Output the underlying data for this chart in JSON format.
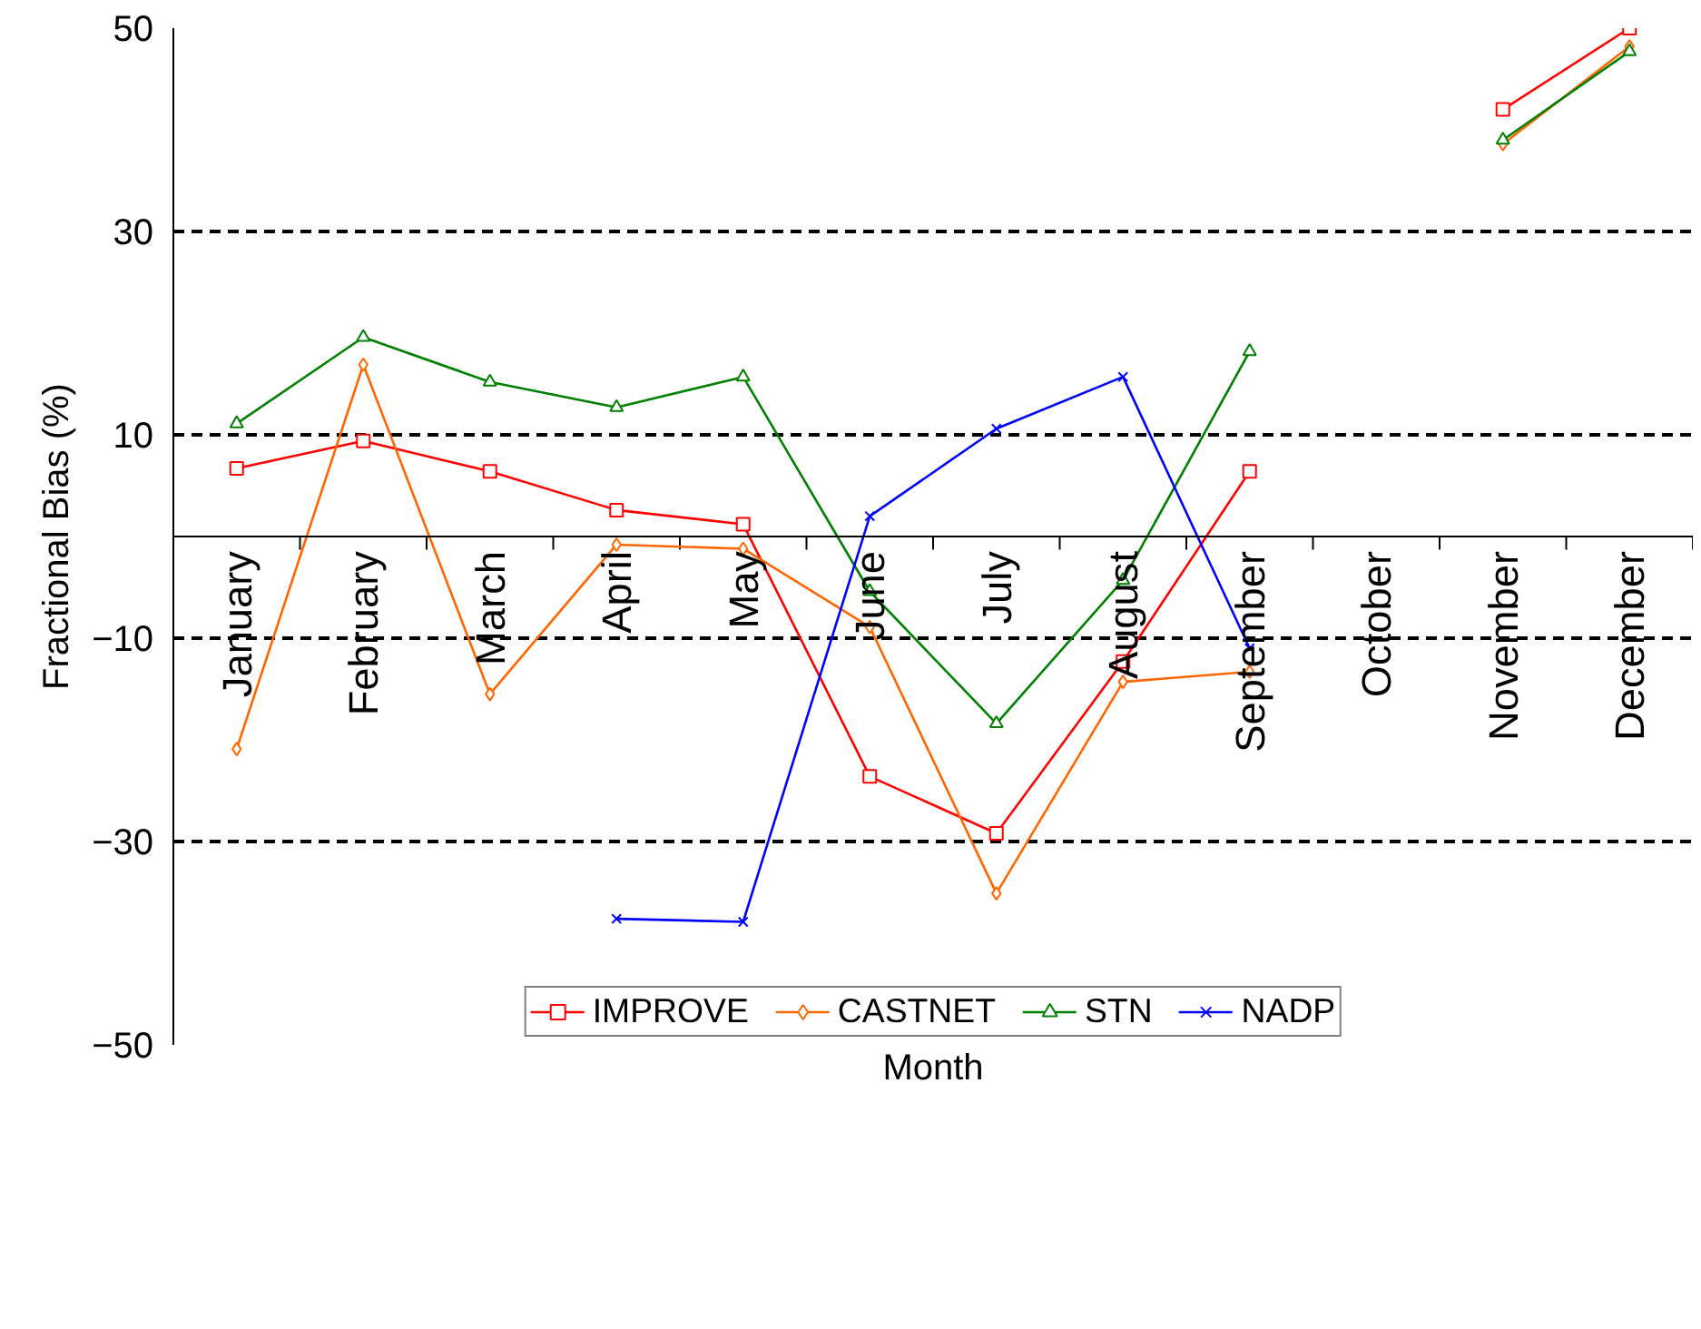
{
  "chart_data": {
    "type": "line",
    "xlabel": "Month",
    "ylabel": "Fractional Bias (%)",
    "categories": [
      "January",
      "February",
      "March",
      "April",
      "May",
      "June",
      "July",
      "August",
      "September",
      "October",
      "November",
      "December"
    ],
    "series": [
      {
        "name": "IMPROVE",
        "color": "#ff0000",
        "marker": "square",
        "values": [
          6.7,
          9.4,
          6.4,
          2.6,
          1.2,
          -23.6,
          -29.2,
          -12.3,
          6.4,
          null,
          42,
          50
        ]
      },
      {
        "name": "CASTNET",
        "color": "#ff6600",
        "marker": "diamond",
        "values": [
          -20.9,
          16.9,
          -15.5,
          -0.8,
          -1.2,
          -8.9,
          -35.1,
          -14.3,
          -13.3,
          null,
          38.6,
          48.2
        ]
      },
      {
        "name": "STN",
        "color": "#008000",
        "marker": "triangle",
        "values": [
          11.1,
          19.6,
          15.2,
          12.7,
          15.7,
          -5.4,
          -18.4,
          -4.3,
          18.2,
          null,
          39,
          47.7
        ]
      },
      {
        "name": "NADP",
        "color": "#0000ff",
        "marker": "cross",
        "values": [
          null,
          null,
          null,
          -37.6,
          -37.9,
          2,
          10.6,
          15.7,
          -11,
          null,
          null,
          null
        ]
      }
    ],
    "ylim": [
      -50,
      50
    ],
    "yticks": [
      -50,
      -30,
      -10,
      10,
      30,
      50
    ],
    "grid": "y",
    "legend": "bottom",
    "line_style": "solid"
  }
}
